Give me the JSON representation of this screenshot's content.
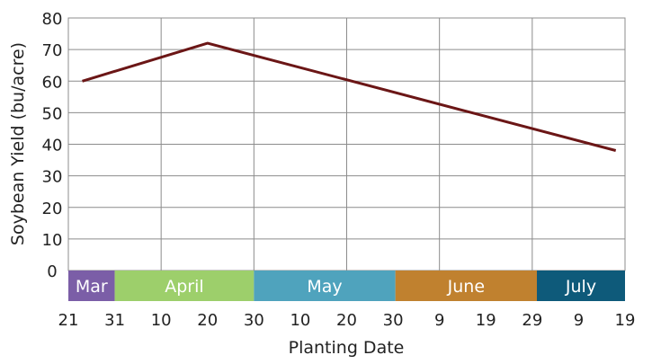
{
  "chart_data": {
    "type": "line",
    "title": "",
    "xlabel": "Planting Date",
    "ylabel": "Soybean Yield (bu/acre)",
    "ylim": [
      0,
      80
    ],
    "yticks": [
      "0",
      "10",
      "20",
      "30",
      "40",
      "50",
      "60",
      "70",
      "80"
    ],
    "xticks": [
      "21",
      "31",
      "10",
      "20",
      "30",
      "10",
      "20",
      "30",
      "9",
      "19",
      "29",
      "9",
      "19"
    ],
    "grid": true,
    "months": [
      {
        "name": "Mar",
        "color": "#7b5ea7",
        "start_tick": 0.3,
        "end_tick": 1.0
      },
      {
        "name": "April",
        "color": "#9dcf6b",
        "start_tick": 1.0,
        "end_tick": 4.0
      },
      {
        "name": "May",
        "color": "#4fa3bd",
        "start_tick": 4.0,
        "end_tick": 7.05
      },
      {
        "name": "June",
        "color": "#c0812f",
        "start_tick": 7.05,
        "end_tick": 10.1
      },
      {
        "name": "July",
        "color": "#0e5a7a",
        "start_tick": 10.1,
        "end_tick": 12.0
      }
    ],
    "series": [
      {
        "color": "#6b1616",
        "points": [
          {
            "tick": 0.3,
            "y": 60
          },
          {
            "tick": 3.0,
            "y": 72
          },
          {
            "tick": 11.8,
            "y": 38
          }
        ]
      }
    ]
  }
}
